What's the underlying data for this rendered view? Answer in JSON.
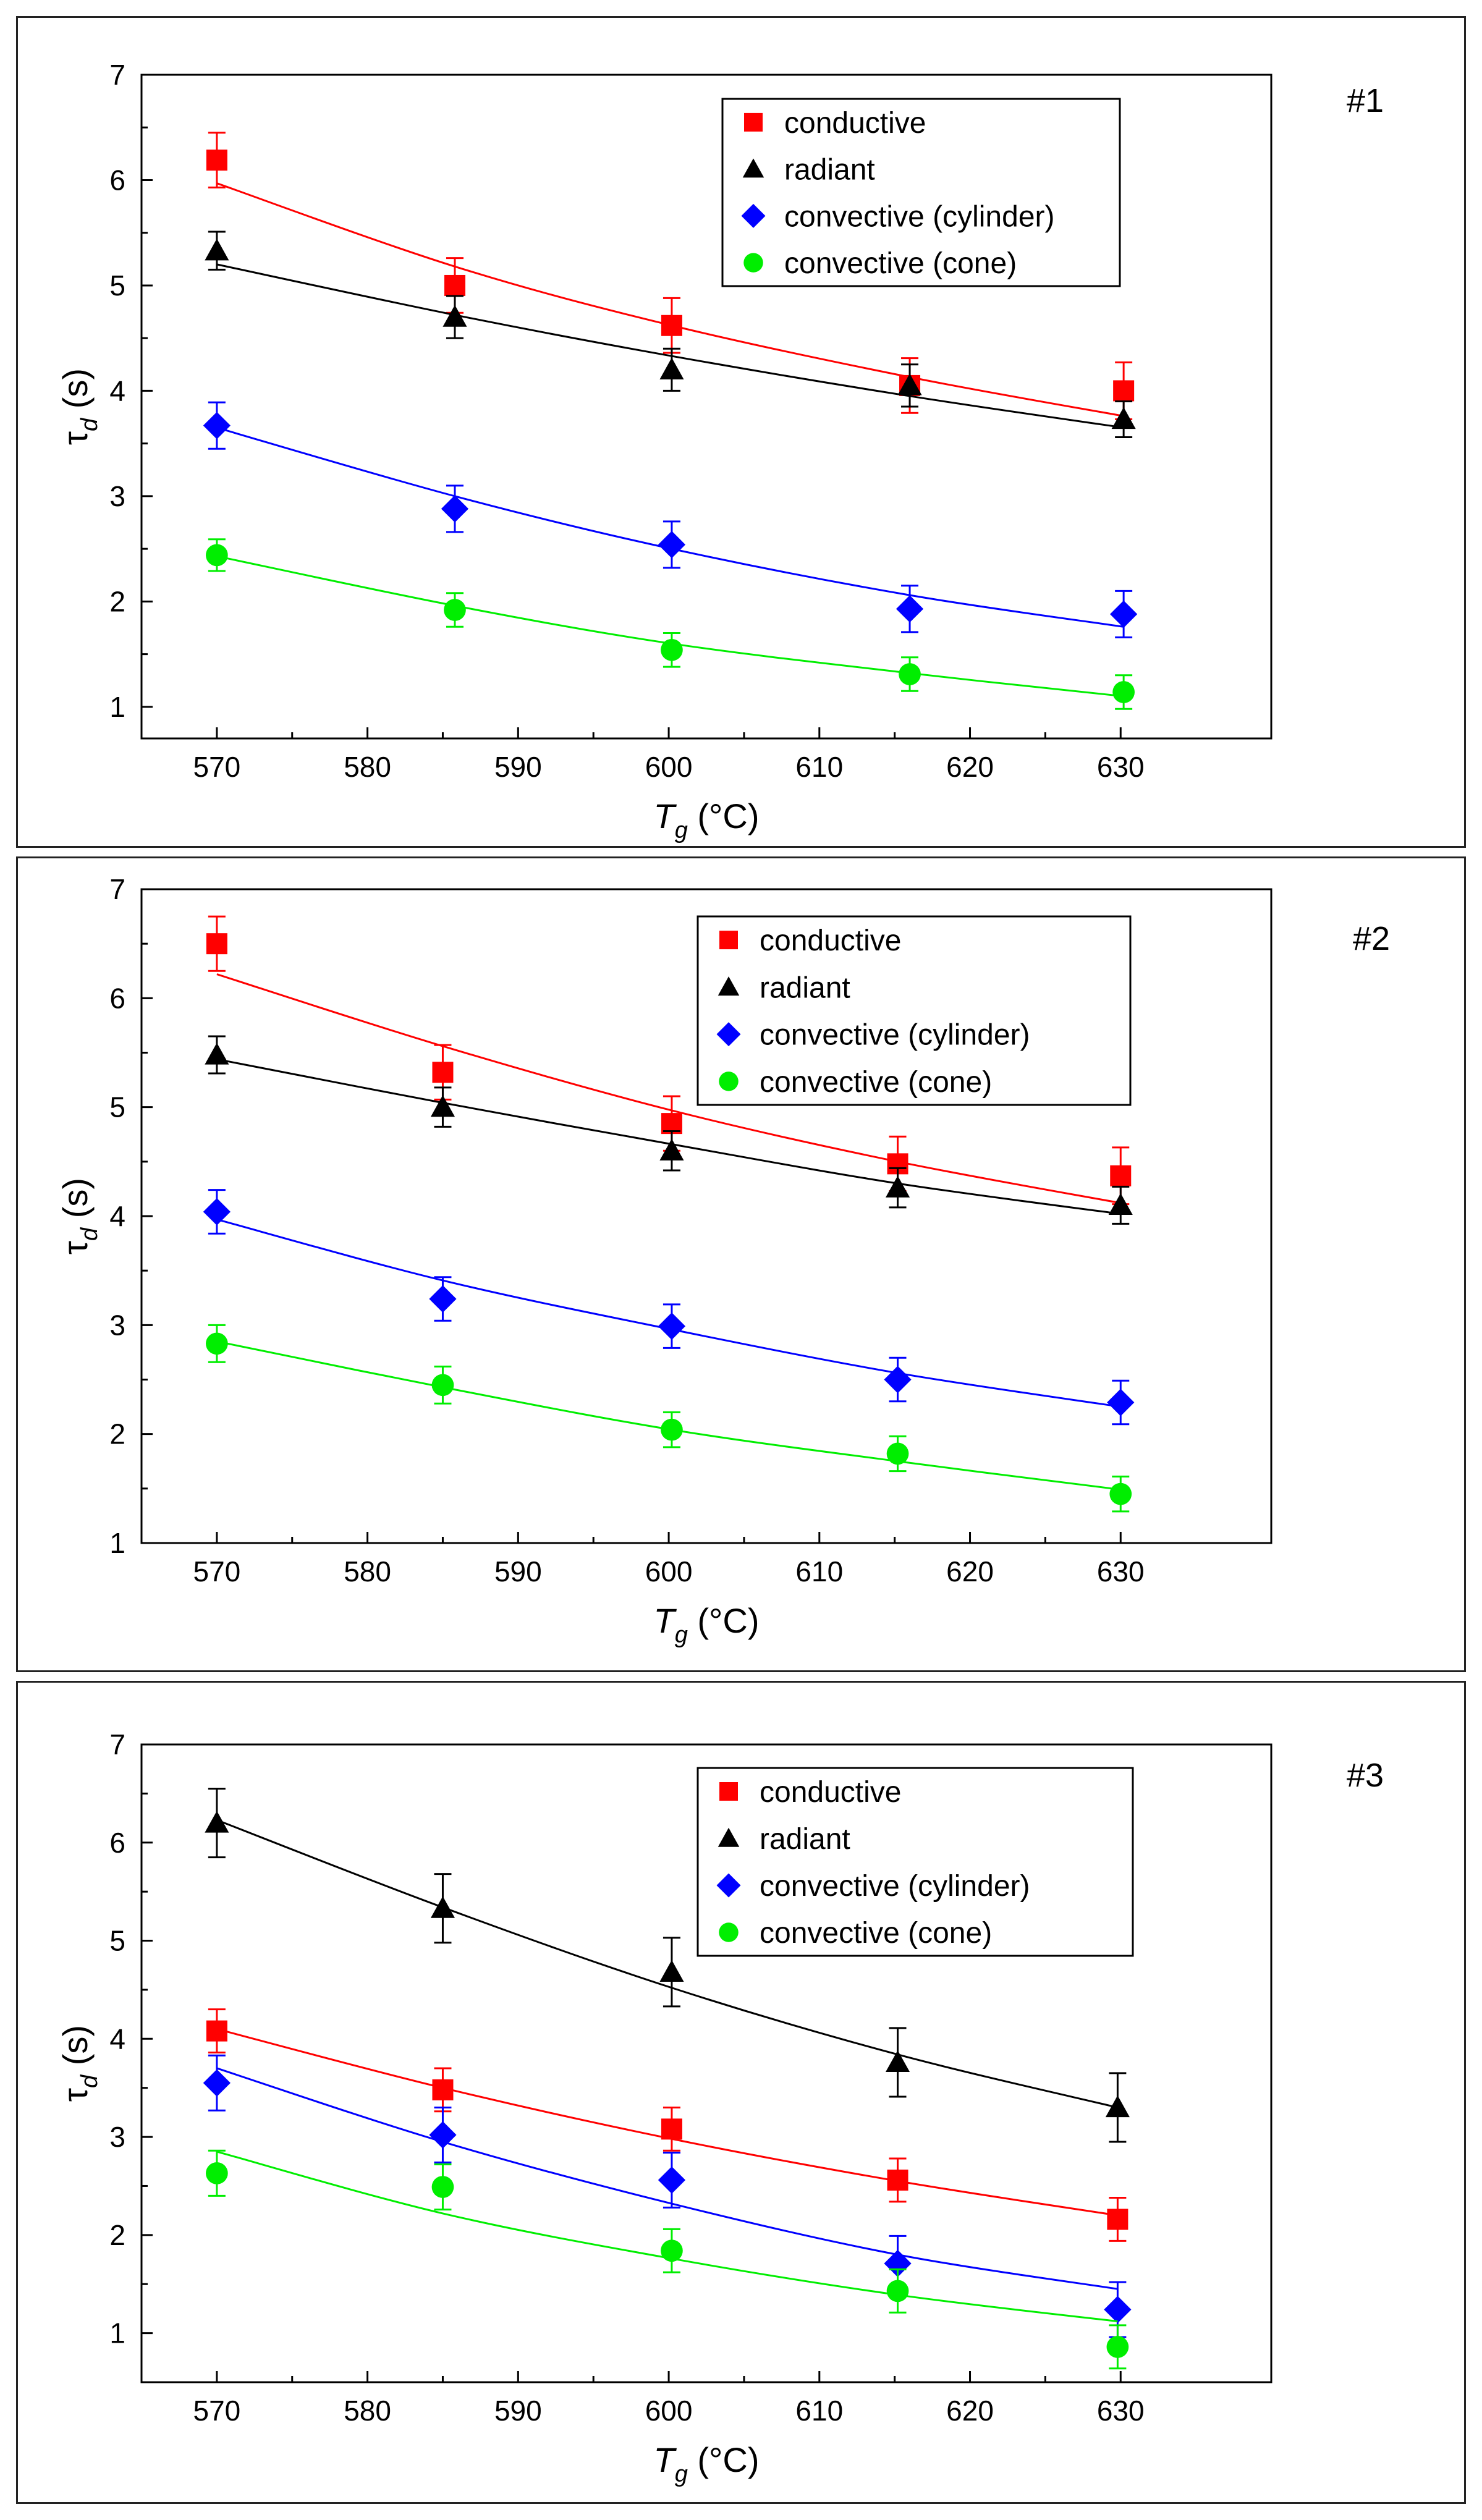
{
  "chart_data": [
    {
      "type": "scatter",
      "panel_label": "#1",
      "title": "",
      "xlabel": "T",
      "xlabel_sub": "g",
      "xlabel_unit": " (°C)",
      "ylabel": "τ",
      "ylabel_sub": "d",
      "ylabel_unit": " (s)",
      "xlim": [
        565,
        640
      ],
      "ylim": [
        0.7,
        7
      ],
      "xticks": [
        570,
        580,
        590,
        600,
        610,
        620,
        630
      ],
      "yticks": [
        1,
        2,
        3,
        4,
        5,
        6,
        7
      ],
      "legend": "top-right",
      "grid": false,
      "x": [
        570,
        585.8,
        600.2,
        616,
        630.2
      ],
      "series": [
        {
          "name": "conductive",
          "marker": "square",
          "color": "#ff0000",
          "y": [
            6.19,
            5.0,
            4.62,
            4.05,
            4.0
          ],
          "err": [
            0.26,
            0.26,
            0.26,
            0.26,
            0.27
          ],
          "fit": [
            5.97,
            5.18,
            4.62,
            4.13,
            3.76
          ]
        },
        {
          "name": "radiant",
          "marker": "triangle",
          "color": "#000000",
          "y": [
            5.33,
            4.7,
            4.2,
            4.05,
            3.73
          ],
          "err": [
            0.18,
            0.2,
            0.2,
            0.2,
            0.17
          ],
          "fit": [
            5.2,
            4.72,
            4.33,
            3.95,
            3.65
          ]
        },
        {
          "name": "convective (cylinder)",
          "marker": "diamond",
          "color": "#0000ff",
          "y": [
            3.67,
            2.88,
            2.54,
            1.93,
            1.88
          ],
          "err": [
            0.22,
            0.22,
            0.22,
            0.22,
            0.22
          ],
          "fit": [
            3.65,
            3.0,
            2.5,
            2.06,
            1.76
          ]
        },
        {
          "name": "convective (cone)",
          "marker": "circle",
          "color": "#00ee00",
          "y": [
            2.44,
            1.92,
            1.54,
            1.31,
            1.14
          ],
          "err": [
            0.15,
            0.16,
            0.16,
            0.16,
            0.16
          ],
          "fit": [
            2.43,
            1.96,
            1.6,
            1.32,
            1.1
          ]
        }
      ]
    },
    {
      "type": "scatter",
      "panel_label": "#2",
      "title": "",
      "xlabel": "T",
      "xlabel_sub": "g",
      "xlabel_unit": " (°C)",
      "ylabel": "τ",
      "ylabel_sub": "d",
      "ylabel_unit": " (s)",
      "xlim": [
        565,
        640
      ],
      "ylim": [
        1,
        7
      ],
      "xticks": [
        570,
        580,
        590,
        600,
        610,
        620,
        630
      ],
      "yticks": [
        1,
        2,
        3,
        4,
        5,
        6,
        7
      ],
      "legend": "top-right",
      "grid": false,
      "x": [
        570,
        585,
        600.2,
        615.2,
        630
      ],
      "series": [
        {
          "name": "conductive",
          "marker": "square",
          "color": "#ff0000",
          "y": [
            6.5,
            5.32,
            4.85,
            4.48,
            4.37
          ],
          "err": [
            0.25,
            0.25,
            0.25,
            0.25,
            0.26
          ],
          "fit": [
            6.22,
            5.56,
            4.97,
            4.5,
            4.12
          ]
        },
        {
          "name": "radiant",
          "marker": "triangle",
          "color": "#000000",
          "y": [
            5.48,
            5.0,
            4.6,
            4.26,
            4.1
          ],
          "err": [
            0.17,
            0.18,
            0.18,
            0.18,
            0.17
          ],
          "fit": [
            5.44,
            5.04,
            4.66,
            4.3,
            4.02
          ]
        },
        {
          "name": "convective (cylinder)",
          "marker": "diamond",
          "color": "#0000ff",
          "y": [
            4.04,
            3.24,
            2.99,
            2.5,
            2.29
          ],
          "err": [
            0.2,
            0.2,
            0.2,
            0.2,
            0.2
          ],
          "fit": [
            3.97,
            3.41,
            2.96,
            2.56,
            2.25
          ]
        },
        {
          "name": "convective (cone)",
          "marker": "circle",
          "color": "#00ee00",
          "y": [
            2.83,
            2.45,
            2.04,
            1.82,
            1.45
          ],
          "err": [
            0.17,
            0.17,
            0.16,
            0.16,
            0.16
          ],
          "fit": [
            2.85,
            2.43,
            2.04,
            1.75,
            1.49
          ]
        }
      ]
    },
    {
      "type": "scatter",
      "panel_label": "#3",
      "title": "",
      "xlabel": "T",
      "xlabel_sub": "g",
      "xlabel_unit": " (°C)",
      "ylabel": "τ",
      "ylabel_sub": "d",
      "ylabel_unit": " (s)",
      "xlim": [
        565,
        640
      ],
      "ylim": [
        0.5,
        7
      ],
      "xticks": [
        570,
        580,
        590,
        600,
        610,
        620,
        630
      ],
      "yticks": [
        1,
        2,
        3,
        4,
        5,
        6,
        7
      ],
      "legend": "top-right",
      "grid": false,
      "x": [
        570,
        585,
        600.2,
        615.2,
        629.8
      ],
      "series": [
        {
          "name": "conductive",
          "marker": "square",
          "color": "#ff0000",
          "y": [
            4.08,
            3.48,
            3.08,
            2.56,
            2.16
          ],
          "err": [
            0.22,
            0.22,
            0.22,
            0.22,
            0.22
          ],
          "fit": [
            4.1,
            3.5,
            2.98,
            2.55,
            2.2
          ]
        },
        {
          "name": "radiant",
          "marker": "triangle",
          "color": "#000000",
          "y": [
            6.2,
            5.33,
            4.68,
            3.76,
            3.3
          ],
          "err": [
            0.35,
            0.35,
            0.35,
            0.35,
            0.35
          ],
          "fit": [
            6.23,
            5.34,
            4.52,
            3.84,
            3.3
          ]
        },
        {
          "name": "convective (cylinder)",
          "marker": "diamond",
          "color": "#0000ff",
          "y": [
            3.55,
            3.02,
            2.56,
            1.71,
            1.24
          ],
          "err": [
            0.28,
            0.28,
            0.28,
            0.28,
            0.28
          ],
          "fit": [
            3.7,
            2.95,
            2.32,
            1.8,
            1.45
          ]
        },
        {
          "name": "convective (cone)",
          "marker": "circle",
          "color": "#00ee00",
          "y": [
            2.63,
            2.49,
            1.84,
            1.43,
            0.86
          ],
          "err": [
            0.23,
            0.23,
            0.22,
            0.22,
            0.22
          ],
          "fit": [
            2.85,
            2.22,
            1.76,
            1.39,
            1.12
          ]
        }
      ]
    }
  ]
}
